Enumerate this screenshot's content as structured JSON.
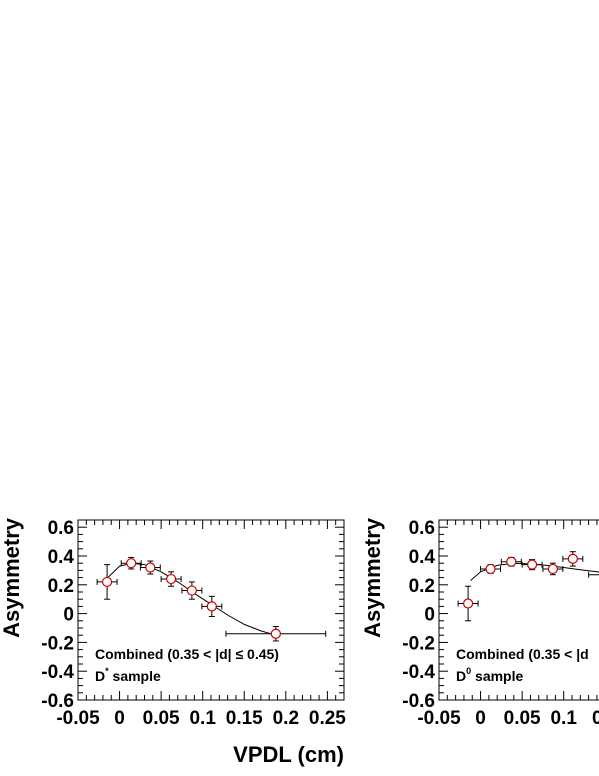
{
  "chart_data": [
    {
      "type": "scatter",
      "xlabel": "VPDL (cm)",
      "ylabel": "Asymmetry",
      "xlim": [
        -0.05,
        0.27
      ],
      "ylim": [
        -0.6,
        0.65
      ],
      "xticks": [
        "-0.05",
        "0",
        "0.05",
        "0.1",
        "0.15",
        "0.2",
        "0.25"
      ],
      "yticks": [
        "0.6",
        "0.4",
        "0.2",
        "0",
        "-0.2",
        "-0.4",
        "-0.6"
      ],
      "annotation_line1": "Combined (0.35 < |d| ≤ 0.45)",
      "annotation_line2_pre": "D",
      "annotation_line2_sup": "*",
      "annotation_line2_post": " sample",
      "points": [
        {
          "x": -0.015,
          "y": 0.22,
          "xerr": 0.012,
          "yerr": 0.12
        },
        {
          "x": 0.014,
          "y": 0.35,
          "xerr": 0.012,
          "yerr": 0.04
        },
        {
          "x": 0.037,
          "y": 0.32,
          "xerr": 0.012,
          "yerr": 0.045
        },
        {
          "x": 0.062,
          "y": 0.24,
          "xerr": 0.012,
          "yerr": 0.05
        },
        {
          "x": 0.087,
          "y": 0.16,
          "xerr": 0.012,
          "yerr": 0.06
        },
        {
          "x": 0.111,
          "y": 0.05,
          "xerr": 0.012,
          "yerr": 0.07
        },
        {
          "x": 0.188,
          "y": -0.14,
          "xerr": 0.06,
          "yerr": 0.05
        }
      ],
      "fit_curve": [
        [
          -0.015,
          0.245
        ],
        [
          0.0,
          0.33
        ],
        [
          0.015,
          0.35
        ],
        [
          0.03,
          0.34
        ],
        [
          0.05,
          0.29
        ],
        [
          0.07,
          0.22
        ],
        [
          0.09,
          0.14
        ],
        [
          0.11,
          0.065
        ],
        [
          0.13,
          -0.01
        ],
        [
          0.15,
          -0.075
        ],
        [
          0.17,
          -0.12
        ],
        [
          0.188,
          -0.15
        ]
      ]
    },
    {
      "type": "scatter",
      "xlabel": "VP",
      "ylabel": "Asymmetry",
      "xlim": [
        -0.05,
        0.27
      ],
      "ylim": [
        -0.6,
        0.65
      ],
      "xticks": [
        "-0.05",
        "0",
        "0.05",
        "0.1",
        "0.1"
      ],
      "yticks": [
        "0.6",
        "0.4",
        "0.2",
        "0",
        "-0.2",
        "-0.4",
        "-0.6"
      ],
      "annotation_line1": "Combined (0.35 < |d",
      "annotation_line2_pre": "D",
      "annotation_line2_sup": "0",
      "annotation_line2_post": " sample",
      "points": [
        {
          "x": -0.015,
          "y": 0.07,
          "xerr": 0.012,
          "yerr": 0.12
        },
        {
          "x": 0.012,
          "y": 0.31,
          "xerr": 0.012,
          "yerr": 0.03
        },
        {
          "x": 0.037,
          "y": 0.36,
          "xerr": 0.012,
          "yerr": 0.03
        },
        {
          "x": 0.062,
          "y": 0.34,
          "xerr": 0.012,
          "yerr": 0.035
        },
        {
          "x": 0.087,
          "y": 0.31,
          "xerr": 0.012,
          "yerr": 0.04
        },
        {
          "x": 0.111,
          "y": 0.38,
          "xerr": 0.012,
          "yerr": 0.05
        },
        {
          "x": 0.19,
          "y": 0.27,
          "xerr": 0.06,
          "yerr": 0.03
        }
      ],
      "fit_curve": [
        [
          -0.012,
          0.23
        ],
        [
          0.0,
          0.29
        ],
        [
          0.02,
          0.335
        ],
        [
          0.04,
          0.35
        ],
        [
          0.06,
          0.345
        ],
        [
          0.08,
          0.335
        ],
        [
          0.1,
          0.32
        ],
        [
          0.12,
          0.305
        ],
        [
          0.14,
          0.29
        ],
        [
          0.16,
          0.275
        ]
      ]
    }
  ]
}
